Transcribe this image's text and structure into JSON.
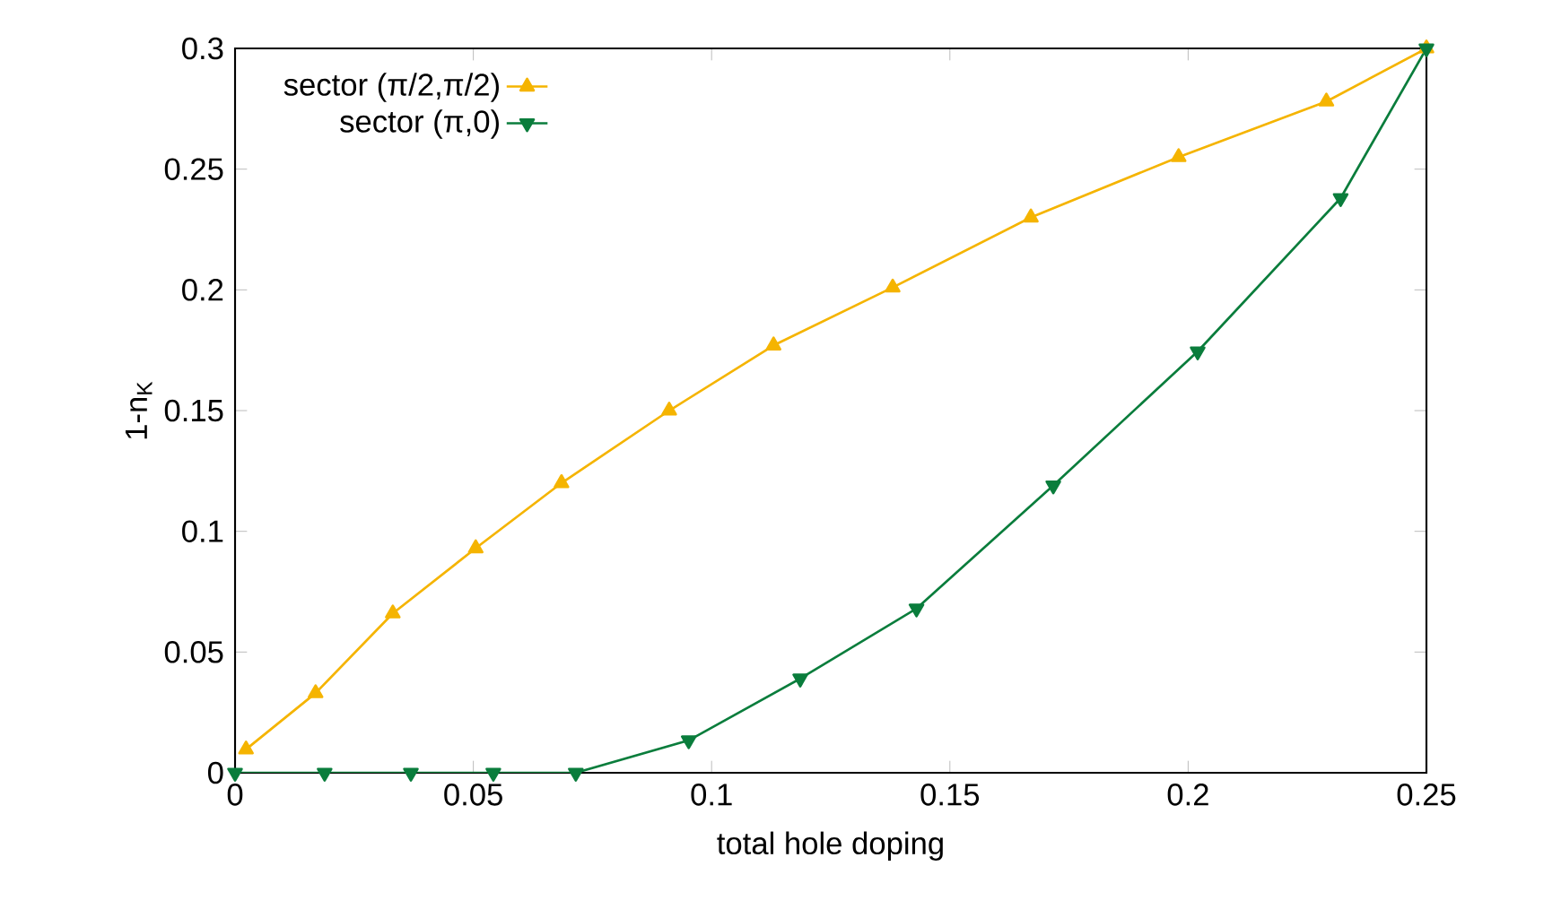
{
  "chart_data": {
    "type": "line",
    "xlabel": "total hole doping",
    "ylabel": "1-n$_{K}$",
    "xlim": [
      0,
      0.25
    ],
    "ylim": [
      0,
      0.3
    ],
    "xticks": [
      0,
      0.05,
      0.1,
      0.15,
      0.2,
      0.25
    ],
    "yticks": [
      0,
      0.05,
      0.1,
      0.15,
      0.2,
      0.25,
      0.3
    ],
    "grid": false,
    "legend": "top left",
    "marker": "triangle",
    "series": [
      {
        "name": "sector (π/2,π/2)",
        "color": "#f5b400",
        "x": [
          0.0023,
          0.0169,
          0.0331,
          0.0505,
          0.0685,
          0.0911,
          0.113,
          0.138,
          0.167,
          0.198,
          0.229,
          0.25
        ],
        "values": [
          0.0097,
          0.033,
          0.066,
          0.093,
          0.12,
          0.15,
          0.177,
          0.201,
          0.23,
          0.255,
          0.278,
          0.3
        ]
      },
      {
        "name": "sector (π,0)",
        "color": "#0a7d3c",
        "x": [
          0,
          0.0188,
          0.0369,
          0.0542,
          0.0715,
          0.0952,
          0.1186,
          0.143,
          0.1717,
          0.202,
          0.232,
          0.25
        ],
        "values": [
          0,
          0,
          0,
          0,
          0,
          0.0134,
          0.039,
          0.068,
          0.119,
          0.1745,
          0.238,
          0.3
        ]
      }
    ]
  }
}
